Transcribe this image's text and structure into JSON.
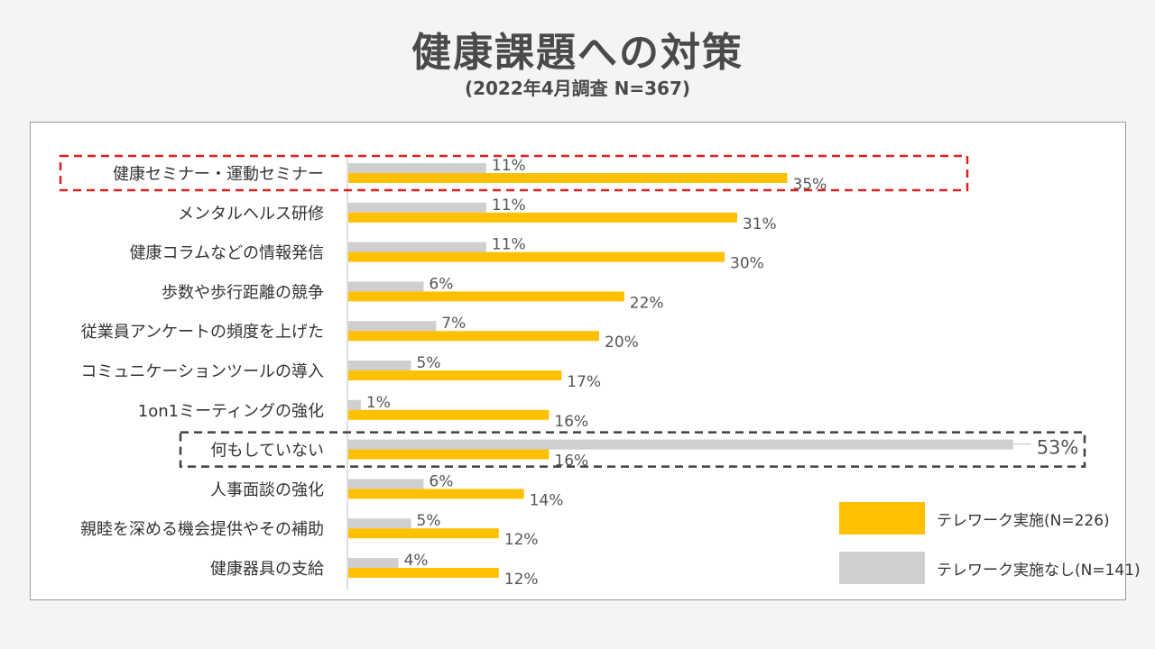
{
  "title": "健康課題への対策",
  "subtitle": "(2022年4月調査  N=367)",
  "colors": {
    "telework": "#ffc000",
    "no_telework": "#d0cece",
    "red_highlight": "#e02020",
    "dark_highlight": "#404040"
  },
  "chart_data": {
    "type": "bar",
    "orientation": "horizontal",
    "categories": [
      "健康セミナー・運動セミナー",
      "メンタルヘルス研修",
      "健康コラムなどの情報発信",
      "歩数や歩行距離の競争",
      "従業員アンケートの頻度を上げた",
      "コミュニケーションツールの導入",
      "1on1ミーティングの強化",
      "何もしていない",
      "人事面談の強化",
      "親睦を深める機会提供やその補助",
      "健康器具の支給"
    ],
    "series": [
      {
        "name": "テレワーク実施なし(N=141)",
        "values": [
          11,
          11,
          11,
          6,
          7,
          5,
          1,
          53,
          6,
          5,
          4
        ],
        "labels": [
          "11%",
          "11%",
          "11%",
          "6%",
          "7%",
          "5%",
          "1%",
          "53%",
          "6%",
          "5%",
          "4%"
        ]
      },
      {
        "name": "テレワーク実施(N=226)",
        "values": [
          35,
          31,
          30,
          22,
          20,
          17,
          16,
          16,
          14,
          12,
          12
        ],
        "labels": [
          "35%",
          "31%",
          "30%",
          "22%",
          "20%",
          "17%",
          "16%",
          "16%",
          "14%",
          "12%",
          "12%"
        ]
      }
    ],
    "xlim": [
      0,
      55
    ],
    "legend": [
      {
        "name": "テレワーク実施(N=226)"
      },
      {
        "name": "テレワーク実施なし(N=141)"
      }
    ],
    "highlights": [
      {
        "category": "健康セミナー・運動セミナー",
        "style": "red-dashed"
      },
      {
        "category": "何もしていない",
        "style": "dark-dashed"
      }
    ]
  }
}
